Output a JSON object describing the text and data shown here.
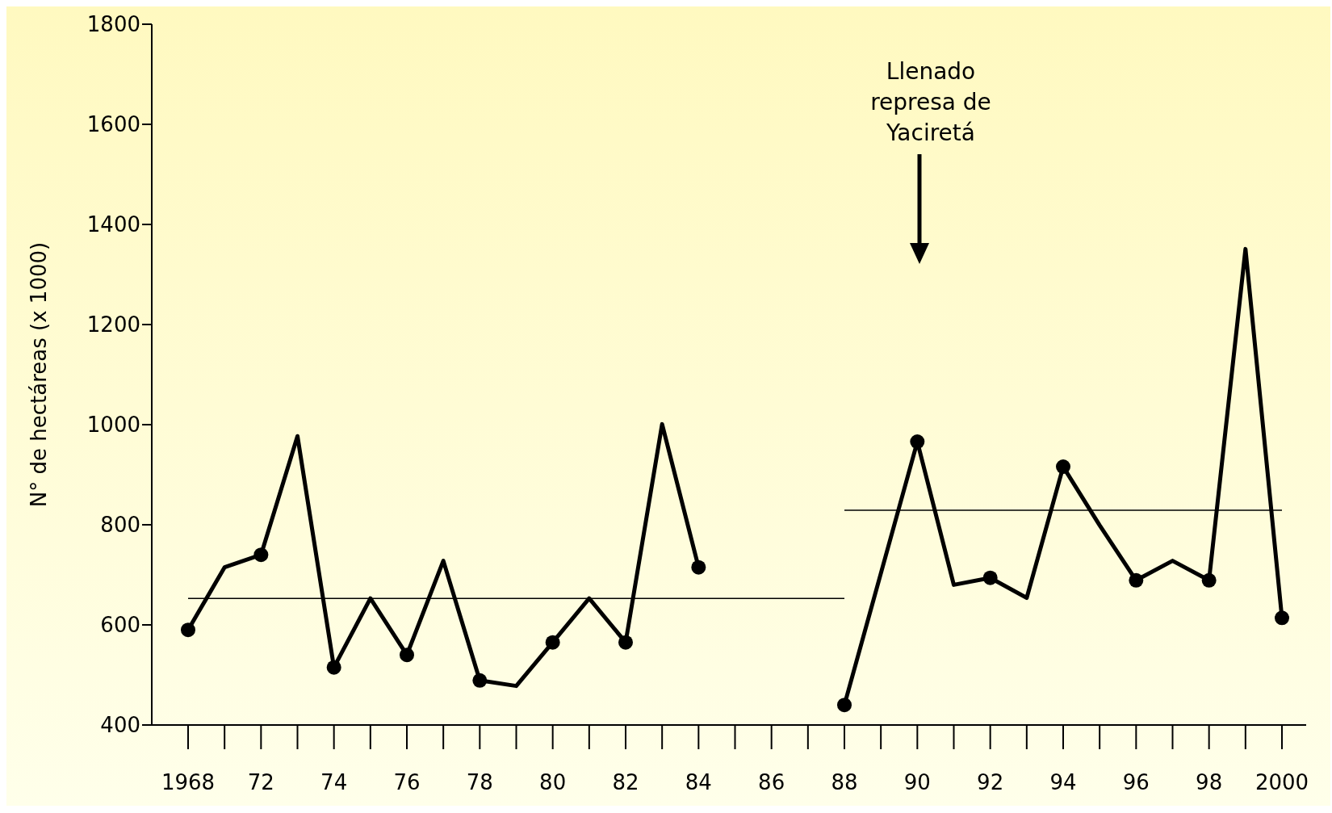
{
  "chart_data": {
    "type": "line",
    "ylabel": "N° de hectáreas (x 1000)",
    "annotations": [
      "Llenado represa de Yaciretá"
    ],
    "categories": [
      "1968",
      null,
      "72",
      null,
      "74",
      null,
      "76",
      null,
      "78",
      null,
      "80",
      null,
      "82",
      null,
      "84",
      null,
      "86",
      null,
      "88",
      null,
      "90",
      null,
      "92",
      null,
      "94",
      null,
      "96",
      null,
      "98",
      null,
      "2000"
    ],
    "ylim": [
      400,
      1800
    ],
    "yticks": [
      400,
      600,
      800,
      1000,
      1200,
      1400,
      1600,
      1800
    ],
    "line_style": "solid",
    "series": [
      {
        "color": "#000000",
        "marker": "none",
        "values": [
          590,
          715,
          740,
          977,
          515,
          653,
          540,
          728,
          489,
          478,
          565,
          653,
          565,
          1001,
          715,
          null,
          null,
          null,
          440,
          703,
          966,
          680,
          694,
          654,
          916,
          799,
          689,
          728,
          689,
          1351,
          614
        ]
      },
      {
        "type": "scatter",
        "color": "#000000",
        "marker": "circle",
        "values": [
          590,
          null,
          740,
          null,
          515,
          null,
          540,
          null,
          489,
          null,
          565,
          null,
          565,
          null,
          715,
          null,
          null,
          null,
          440,
          null,
          966,
          null,
          694,
          null,
          916,
          null,
          689,
          null,
          689,
          null,
          614
        ]
      },
      {
        "type": "line",
        "color": "#000000",
        "marker": "none",
        "values": [
          653,
          null,
          null,
          null,
          null,
          null,
          null,
          null,
          null,
          null,
          null,
          null,
          null,
          null,
          null,
          null,
          null,
          null,
          653,
          null,
          null,
          null,
          null,
          null,
          null,
          null,
          null,
          null,
          null,
          null,
          null
        ]
      },
      {
        "type": "line",
        "color": "#000000",
        "marker": "none",
        "values": [
          null,
          null,
          null,
          null,
          null,
          null,
          null,
          null,
          null,
          null,
          null,
          null,
          null,
          null,
          null,
          null,
          null,
          null,
          829,
          null,
          null,
          null,
          null,
          null,
          null,
          null,
          null,
          null,
          null,
          null,
          829
        ]
      }
    ]
  }
}
